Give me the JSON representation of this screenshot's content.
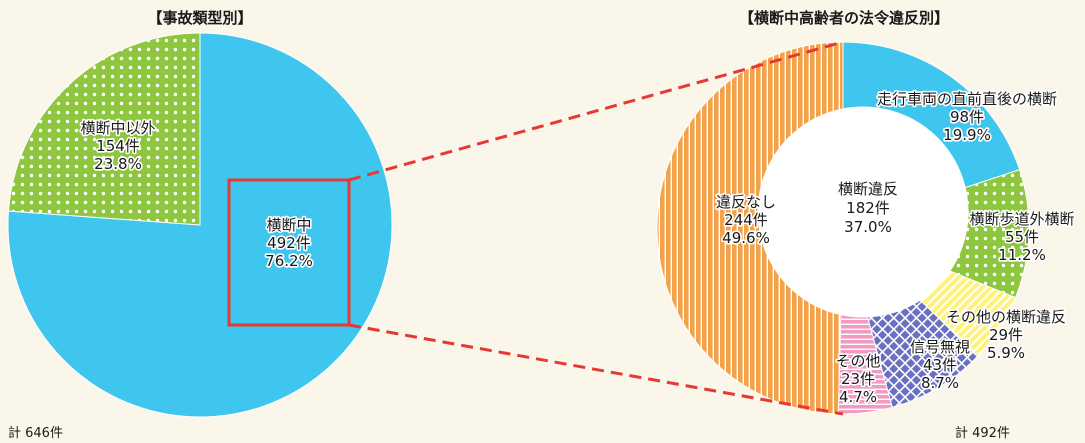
{
  "colors": {
    "background": "#fbf6ea",
    "blue": "#3ec6ef",
    "green_dots": "#8fc63f",
    "orange_stripes": "#f3a24a",
    "yellow_hatch": "#fff27a",
    "purple_crosshatch": "#6a6fc0",
    "pink_stripes": "#f29ac2",
    "white": "#ffffff",
    "highlight_red": "#e53935"
  },
  "chart_data": [
    {
      "type": "pie",
      "title": "【事故類型別】",
      "total_label": "計 646件",
      "slices": [
        {
          "name": "横断中",
          "count_label": "492件",
          "pct_label": "76.2%",
          "value": 492,
          "percent": 76.2,
          "color": "#3ec6ef",
          "pattern": "none"
        },
        {
          "name": "横断中以外",
          "count_label": "154件",
          "pct_label": "23.8%",
          "value": 154,
          "percent": 23.8,
          "color": "#8fc63f",
          "pattern": "dots"
        }
      ]
    },
    {
      "type": "pie",
      "title": "【横断中高齢者の法令違反別】",
      "total_label": "計 492件",
      "slices": [
        {
          "name": "走行車両の直前直後の横断",
          "count_label": "98件",
          "pct_label": "19.9%",
          "value": 98,
          "percent": 19.9,
          "color": "#3ec6ef",
          "pattern": "none"
        },
        {
          "name": "横断歩道外横断",
          "count_label": "55件",
          "pct_label": "11.2%",
          "value": 55,
          "percent": 11.2,
          "color": "#8fc63f",
          "pattern": "dots"
        },
        {
          "name": "その他の横断違反",
          "count_label": "29件",
          "pct_label": "5.9%",
          "value": 29,
          "percent": 5.9,
          "color": "#fff27a",
          "pattern": "hatch"
        },
        {
          "name": "信号無視",
          "count_label": "43件",
          "pct_label": "8.7%",
          "value": 43,
          "percent": 8.7,
          "color": "#6a6fc0",
          "pattern": "crosshatch"
        },
        {
          "name": "その他",
          "count_label": "23件",
          "pct_label": "4.7%",
          "value": 23,
          "percent": 4.7,
          "color": "#f29ac2",
          "pattern": "hstripes"
        },
        {
          "name": "違反なし",
          "count_label": "244件",
          "pct_label": "49.6%",
          "value": 244,
          "percent": 49.6,
          "color": "#f3a24a",
          "pattern": "vstripes"
        }
      ],
      "inner_group": {
        "name": "横断違反",
        "count_label": "182件",
        "pct_label": "37.0%",
        "value": 182,
        "percent": 37.0
      }
    }
  ]
}
